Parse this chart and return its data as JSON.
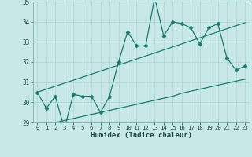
{
  "x": [
    0,
    1,
    2,
    3,
    4,
    5,
    6,
    7,
    8,
    9,
    10,
    11,
    12,
    13,
    14,
    15,
    16,
    17,
    18,
    19,
    20,
    21,
    22,
    23
  ],
  "y_main": [
    30.5,
    29.7,
    30.3,
    28.7,
    30.4,
    30.3,
    30.3,
    29.5,
    30.3,
    32.0,
    33.5,
    32.8,
    32.8,
    35.2,
    33.3,
    34.0,
    33.9,
    33.7,
    32.9,
    33.7,
    33.9,
    32.2,
    31.6,
    31.8
  ],
  "y_upper": [
    30.5,
    30.65,
    30.8,
    30.95,
    31.1,
    31.25,
    31.4,
    31.55,
    31.7,
    31.85,
    32.0,
    32.15,
    32.3,
    32.45,
    32.6,
    32.75,
    32.9,
    33.05,
    33.2,
    33.35,
    33.5,
    33.65,
    33.8,
    33.95
  ],
  "y_lower": [
    28.8,
    28.9,
    29.0,
    29.1,
    29.2,
    29.3,
    29.4,
    29.5,
    29.6,
    29.7,
    29.8,
    29.9,
    30.0,
    30.1,
    30.2,
    30.3,
    30.45,
    30.55,
    30.65,
    30.75,
    30.85,
    30.95,
    31.05,
    31.15
  ],
  "ylim": [
    29,
    35
  ],
  "xlim": [
    -0.5,
    23.5
  ],
  "yticks": [
    29,
    30,
    31,
    32,
    33,
    34,
    35
  ],
  "xticks": [
    0,
    1,
    2,
    3,
    4,
    5,
    6,
    7,
    8,
    9,
    10,
    11,
    12,
    13,
    14,
    15,
    16,
    17,
    18,
    19,
    20,
    21,
    22,
    23
  ],
  "xlabel": "Humidex (Indice chaleur)",
  "line_color": "#1a7a6e",
  "bg_color": "#c8e8e8",
  "grid_color": "#aad4d0",
  "marker": "D",
  "marker_size": 2.5
}
